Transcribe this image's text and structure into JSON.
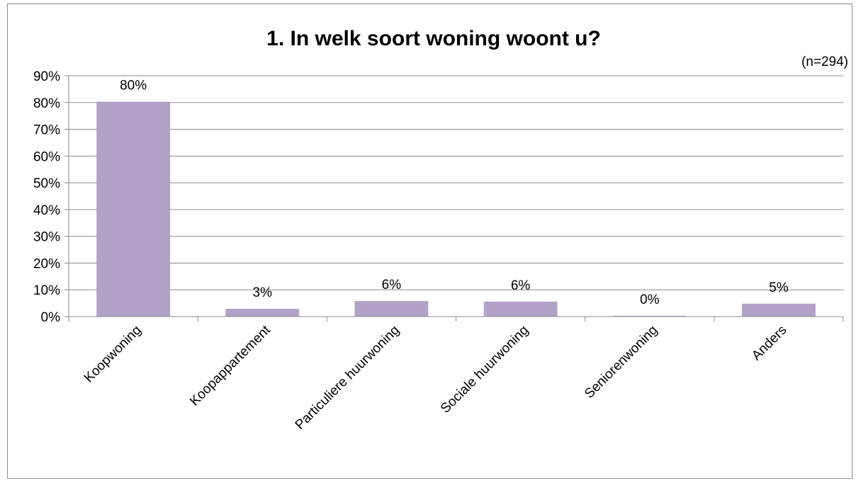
{
  "chart_data": {
    "type": "bar",
    "title": "1. In welk soort woning woont u?",
    "note": "(n=294)",
    "categories": [
      "Koopwoning",
      "Koopappartement",
      "Particuliere huurwoning",
      "Sociale huurwoning",
      "Seniorenwoning",
      "Anders"
    ],
    "values": [
      80.3,
      2.9,
      5.8,
      5.6,
      0.3,
      4.8
    ],
    "data_labels": [
      "80%",
      "3%",
      "6%",
      "6%",
      "0%",
      "5%"
    ],
    "y_ticks": [
      "0%",
      "10%",
      "20%",
      "30%",
      "40%",
      "50%",
      "60%",
      "70%",
      "80%",
      "90%"
    ],
    "ylim": [
      0,
      90
    ],
    "y_step": 10,
    "grid": true,
    "legend": "none",
    "bar_color": "#b3a2c7",
    "xlabel": "",
    "ylabel": ""
  }
}
